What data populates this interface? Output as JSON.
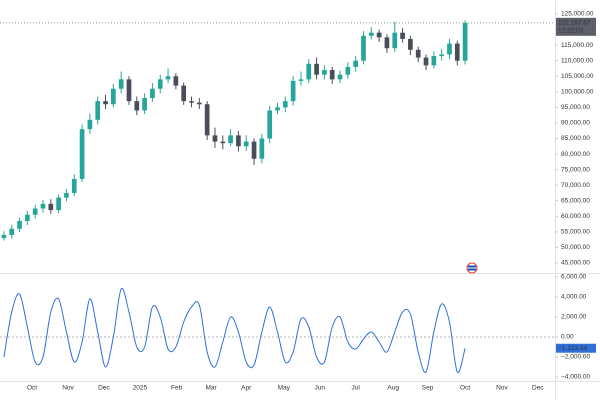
{
  "chart_data": [
    {
      "type": "candlestick",
      "open": [
        53000,
        54000,
        56000,
        58500,
        60500,
        62500,
        64000,
        62000,
        66000,
        67500,
        72000,
        88000,
        91000,
        97000,
        96000,
        101000,
        104000,
        97000,
        94000,
        98000,
        101000,
        104000,
        105000,
        102000,
        97000,
        96500,
        96000,
        86000,
        84000,
        83500,
        86000,
        82500,
        84000,
        78500,
        85000,
        94000,
        95000,
        97000,
        103500,
        104000,
        109000,
        105500,
        107000,
        104000,
        105500,
        108000,
        110000,
        118000,
        119000,
        117500,
        114000,
        119000,
        117000,
        113500,
        111000,
        108500,
        111500,
        112000,
        115500,
        110000
      ],
      "high": [
        55200,
        57300,
        59600,
        61800,
        63700,
        65200,
        65500,
        67000,
        68800,
        73500,
        89500,
        93000,
        98500,
        99000,
        102500,
        106500,
        105000,
        98500,
        99500,
        102800,
        105500,
        107500,
        106000,
        103000,
        98500,
        98000,
        97000,
        88500,
        86000,
        88000,
        87500,
        86000,
        85000,
        86500,
        95500,
        96500,
        98500,
        105000,
        106500,
        110500,
        111000,
        108500,
        108000,
        106800,
        109500,
        111500,
        119500,
        120800,
        120000,
        118500,
        122500,
        120500,
        118000,
        114500,
        112000,
        113000,
        113800,
        117000,
        116500,
        123000
      ],
      "low": [
        52200,
        52800,
        55000,
        57200,
        59300,
        61200,
        60800,
        61000,
        64800,
        66500,
        71000,
        86500,
        89500,
        94500,
        95000,
        99500,
        95800,
        92500,
        92800,
        96800,
        99500,
        102800,
        100800,
        95800,
        95000,
        94500,
        84500,
        82000,
        81500,
        82500,
        80800,
        81000,
        76500,
        77000,
        83500,
        92800,
        93500,
        95500,
        102000,
        102800,
        104000,
        104000,
        102500,
        102800,
        104200,
        106500,
        108800,
        116800,
        116000,
        112500,
        112800,
        115800,
        111800,
        109500,
        107000,
        107500,
        110000,
        110500,
        108500,
        108800
      ],
      "close": [
        54000,
        56000,
        58500,
        60500,
        62500,
        64000,
        62000,
        66000,
        67500,
        72000,
        88000,
        91000,
        97000,
        96000,
        101000,
        104000,
        97000,
        94000,
        98000,
        101000,
        104000,
        105000,
        102000,
        97000,
        96500,
        96000,
        86000,
        84000,
        83500,
        86000,
        82500,
        84000,
        78500,
        85000,
        94000,
        95000,
        97000,
        103500,
        104000,
        109000,
        105500,
        107000,
        104000,
        105500,
        108000,
        110000,
        118000,
        119000,
        117500,
        114000,
        119000,
        117000,
        113500,
        111000,
        108500,
        111500,
        112000,
        115500,
        110000,
        122167.67
      ],
      "up_color": "#26a69a",
      "down_color": "#4a4e5a",
      "xlim": [
        -0.5,
        70.5
      ],
      "xticks": [
        {
          "value": 3.6,
          "label": "Oct"
        },
        {
          "value": 8.2,
          "label": "Nov"
        },
        {
          "value": 12.8,
          "label": "Dec"
        },
        {
          "value": 17.4,
          "label": "2025"
        },
        {
          "value": 22.1,
          "label": "Feb"
        },
        {
          "value": 26.5,
          "label": "Mar"
        },
        {
          "value": 31,
          "label": "Apr"
        },
        {
          "value": 35.8,
          "label": "May"
        },
        {
          "value": 40.4,
          "label": "Jun"
        },
        {
          "value": 45,
          "label": "Jul"
        },
        {
          "value": 49.8,
          "label": "Aug"
        },
        {
          "value": 54.2,
          "label": "Sep"
        },
        {
          "value": 59,
          "label": "Oct"
        },
        {
          "value": 63.7,
          "label": "Nov"
        },
        {
          "value": 68.3,
          "label": "Dec"
        }
      ],
      "ylim": [
        42100,
        129500
      ],
      "yticks": [
        {
          "value": 45000,
          "label": "45,000.00"
        },
        {
          "value": 50000,
          "label": "50,000.00"
        },
        {
          "value": 55000,
          "label": "55,000.00"
        },
        {
          "value": 60000,
          "label": "60,000.00"
        },
        {
          "value": 65000,
          "label": "65,000.00"
        },
        {
          "value": 70000,
          "label": "70,000.00"
        },
        {
          "value": 75000,
          "label": "75,000.00"
        },
        {
          "value": 80000,
          "label": "80,000.00"
        },
        {
          "value": 85000,
          "label": "85,000.00"
        },
        {
          "value": 90000,
          "label": "90,000.00"
        },
        {
          "value": 95000,
          "label": "95,000.00"
        },
        {
          "value": 100000,
          "label": "100,000.00"
        },
        {
          "value": 105000,
          "label": "105,000.00"
        },
        {
          "value": 110000,
          "label": "110,000.00"
        },
        {
          "value": 115000,
          "label": "115,000.00"
        },
        {
          "value": 120000,
          "label": "120,000.00"
        },
        {
          "value": 125000,
          "label": "125,000.00"
        }
      ],
      "last_price": {
        "value": 122167.67,
        "label": "122,167.67"
      },
      "countdown": "12:22:03"
    },
    {
      "type": "line",
      "color": "#2f6fd8",
      "values": [
        -2000,
        2500,
        4300,
        1000,
        -2500,
        -2000,
        2500,
        3800,
        500,
        -2500,
        -500,
        3800,
        500,
        -3000,
        0,
        4800,
        2500,
        -1000,
        -1000,
        3000,
        2000,
        -1200,
        -1000,
        1500,
        3000,
        3200,
        -1500,
        -3000,
        -500,
        2000,
        500,
        -2500,
        -2800,
        500,
        3000,
        500,
        -2500,
        -1500,
        1800,
        1000,
        -2000,
        -2500,
        1000,
        2000,
        -500,
        -1200,
        -200,
        500,
        -500,
        -1500,
        500,
        2500,
        2300,
        -1500,
        -3500,
        500,
        3300,
        1500,
        -3500,
        -1123.34
      ],
      "ylim": [
        -4400,
        6200
      ],
      "yticks": [
        {
          "value": 6000,
          "label": "6,000.00"
        },
        {
          "value": 4000,
          "label": "4,000.00"
        },
        {
          "value": 2000,
          "label": "2,000.00"
        },
        {
          "value": 0,
          "label": "0.00"
        },
        {
          "value": -2000,
          "label": "−2,000.00"
        },
        {
          "value": -4000,
          "label": "−4,000.00"
        }
      ],
      "last_value": {
        "value": -1123.34,
        "label": "−1,123.34"
      }
    }
  ]
}
